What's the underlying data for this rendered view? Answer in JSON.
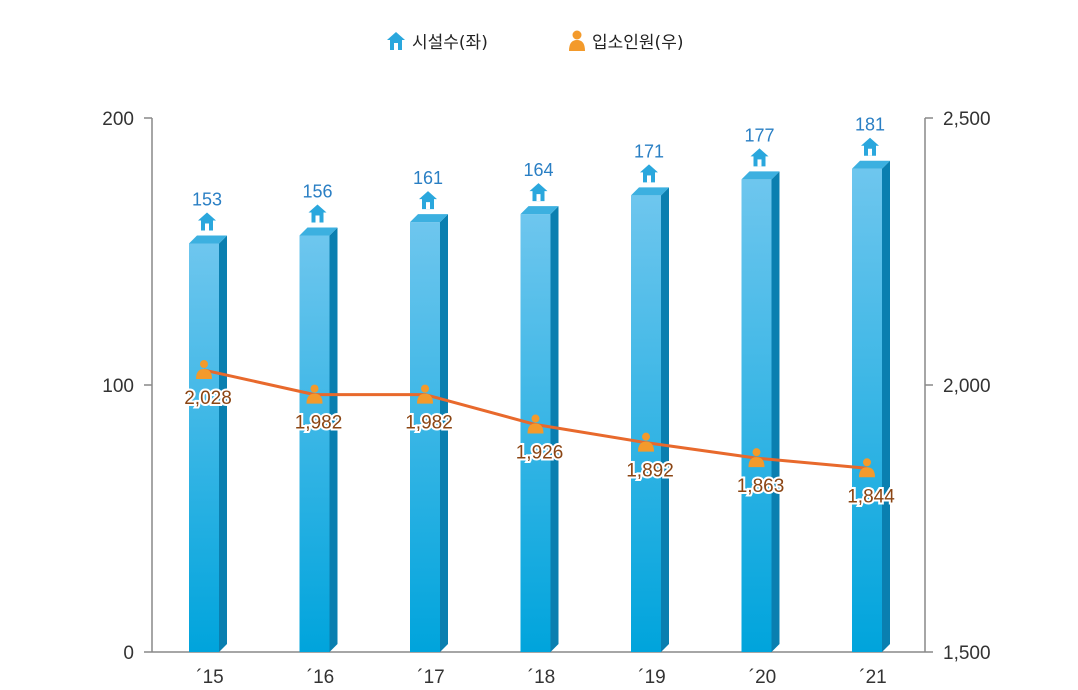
{
  "legend": {
    "bars_label": "시설수(좌)",
    "line_label": "입소인원(우)",
    "bars_icon": "house-icon",
    "line_icon": "person-icon"
  },
  "colors": {
    "bar_front_top": "#6ec6ee",
    "bar_front_bottom": "#00a4dc",
    "bar_side": "#0a7fb0",
    "bar_top": "#3cb0e0",
    "line": "#e8692c",
    "marker": "#f39a2b",
    "bar_label": "#2a7fc4",
    "line_label": "#8b4513"
  },
  "chart_data": {
    "type": "bar+line",
    "categories": [
      "´15",
      "´16",
      "´17",
      "´18",
      "´19",
      "´20",
      "´21"
    ],
    "series": [
      {
        "name": "시설수(좌)",
        "type": "bar",
        "axis": "left",
        "values": [
          153,
          156,
          161,
          164,
          171,
          177,
          181
        ],
        "labels": [
          "153",
          "156",
          "161",
          "164",
          "171",
          "177",
          "181"
        ]
      },
      {
        "name": "입소인원(우)",
        "type": "line",
        "axis": "right",
        "values": [
          2028,
          1982,
          1982,
          1926,
          1892,
          1863,
          1844
        ],
        "labels": [
          "2,028",
          "1,982",
          "1,982",
          "1,926",
          "1,892",
          "1,863",
          "1,844"
        ]
      }
    ],
    "left_axis": {
      "min": 0,
      "max": 200,
      "ticks": [
        0,
        100,
        200
      ],
      "tick_labels": [
        "0",
        "100",
        "200"
      ]
    },
    "right_axis": {
      "min": 1500,
      "max": 2500,
      "ticks": [
        1500,
        2000,
        2500
      ],
      "tick_labels": [
        "1,500",
        "2,000",
        "2,500"
      ]
    },
    "legend_position": "top-center",
    "grid": false
  }
}
